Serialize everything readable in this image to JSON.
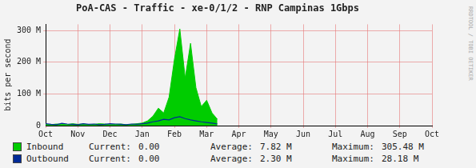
{
  "chart_data": {
    "type": "line",
    "title": "PoA-CAS - Traffic - xe-0/1/2 - RNP Campinas 1Gbps",
    "y_label": "bits per second",
    "side_text": "RRDTOOL / TOBI OETIKER",
    "categories": [
      "Oct",
      null,
      null,
      null,
      null,
      null,
      "Nov",
      null,
      null,
      null,
      null,
      null,
      "Dec",
      null,
      null,
      null,
      null,
      null,
      "Jan",
      null,
      null,
      null,
      null,
      null,
      "Feb",
      null,
      null,
      null,
      null,
      null,
      "Mar",
      null,
      null,
      null,
      null,
      null,
      "Apr",
      null,
      null,
      null,
      null,
      null,
      "May",
      null,
      null,
      null,
      null,
      null,
      "Jun",
      null,
      null,
      null,
      null,
      null,
      "Jul",
      null,
      null,
      null,
      null,
      null,
      "Aug",
      null,
      null,
      null,
      null,
      null,
      "Sep",
      null,
      null,
      null,
      null,
      null,
      "Oct"
    ],
    "stat_labels": [
      "Current:",
      "Average:",
      "Maximum:"
    ],
    "series": [
      {
        "name": "Inbound",
        "type": "area",
        "color": "#00cc00",
        "stats": [
          "0.00",
          "7.82 M",
          "305.48 M"
        ],
        "values": [
          4,
          3,
          5,
          4,
          3,
          6,
          4,
          5,
          3,
          4,
          6,
          5,
          3,
          4,
          5,
          3,
          4,
          6,
          8,
          15,
          30,
          55,
          40,
          90,
          210,
          305.48,
          150,
          260,
          120,
          60,
          80,
          40,
          20,
          null,
          null,
          null,
          null,
          null,
          null,
          null,
          null,
          null,
          null,
          null,
          null,
          null,
          null,
          null,
          null,
          null,
          null,
          null,
          null,
          null,
          null,
          null,
          null,
          null,
          null,
          null,
          null,
          null,
          null,
          null,
          null,
          null,
          null,
          null,
          null,
          null,
          null,
          null,
          null
        ]
      },
      {
        "name": "Outbound",
        "type": "line",
        "color": "#002a97",
        "stats": [
          "0.00",
          "2.30 M",
          "28.18 M"
        ],
        "values": [
          6,
          4,
          3,
          7,
          5,
          4,
          3,
          6,
          4,
          5,
          3,
          4,
          6,
          5,
          4,
          3,
          5,
          4,
          6,
          8,
          12,
          15,
          20,
          18,
          25,
          28.18,
          22,
          18,
          15,
          12,
          10,
          8,
          5,
          null,
          null,
          null,
          null,
          null,
          null,
          null,
          null,
          null,
          null,
          null,
          null,
          null,
          null,
          null,
          null,
          null,
          null,
          null,
          null,
          null,
          null,
          null,
          null,
          null,
          null,
          null,
          null,
          null,
          null,
          null,
          null,
          null,
          null,
          null,
          null,
          null,
          null,
          null,
          null
        ]
      }
    ],
    "ylim": [
      0,
      320
    ],
    "yticks": [
      0,
      {
        "value": 100,
        "label": "100 M"
      },
      {
        "value": 200,
        "label": "200 M"
      },
      {
        "value": 300,
        "label": "300 M"
      }
    ],
    "grid": true,
    "legend": "bottom"
  }
}
